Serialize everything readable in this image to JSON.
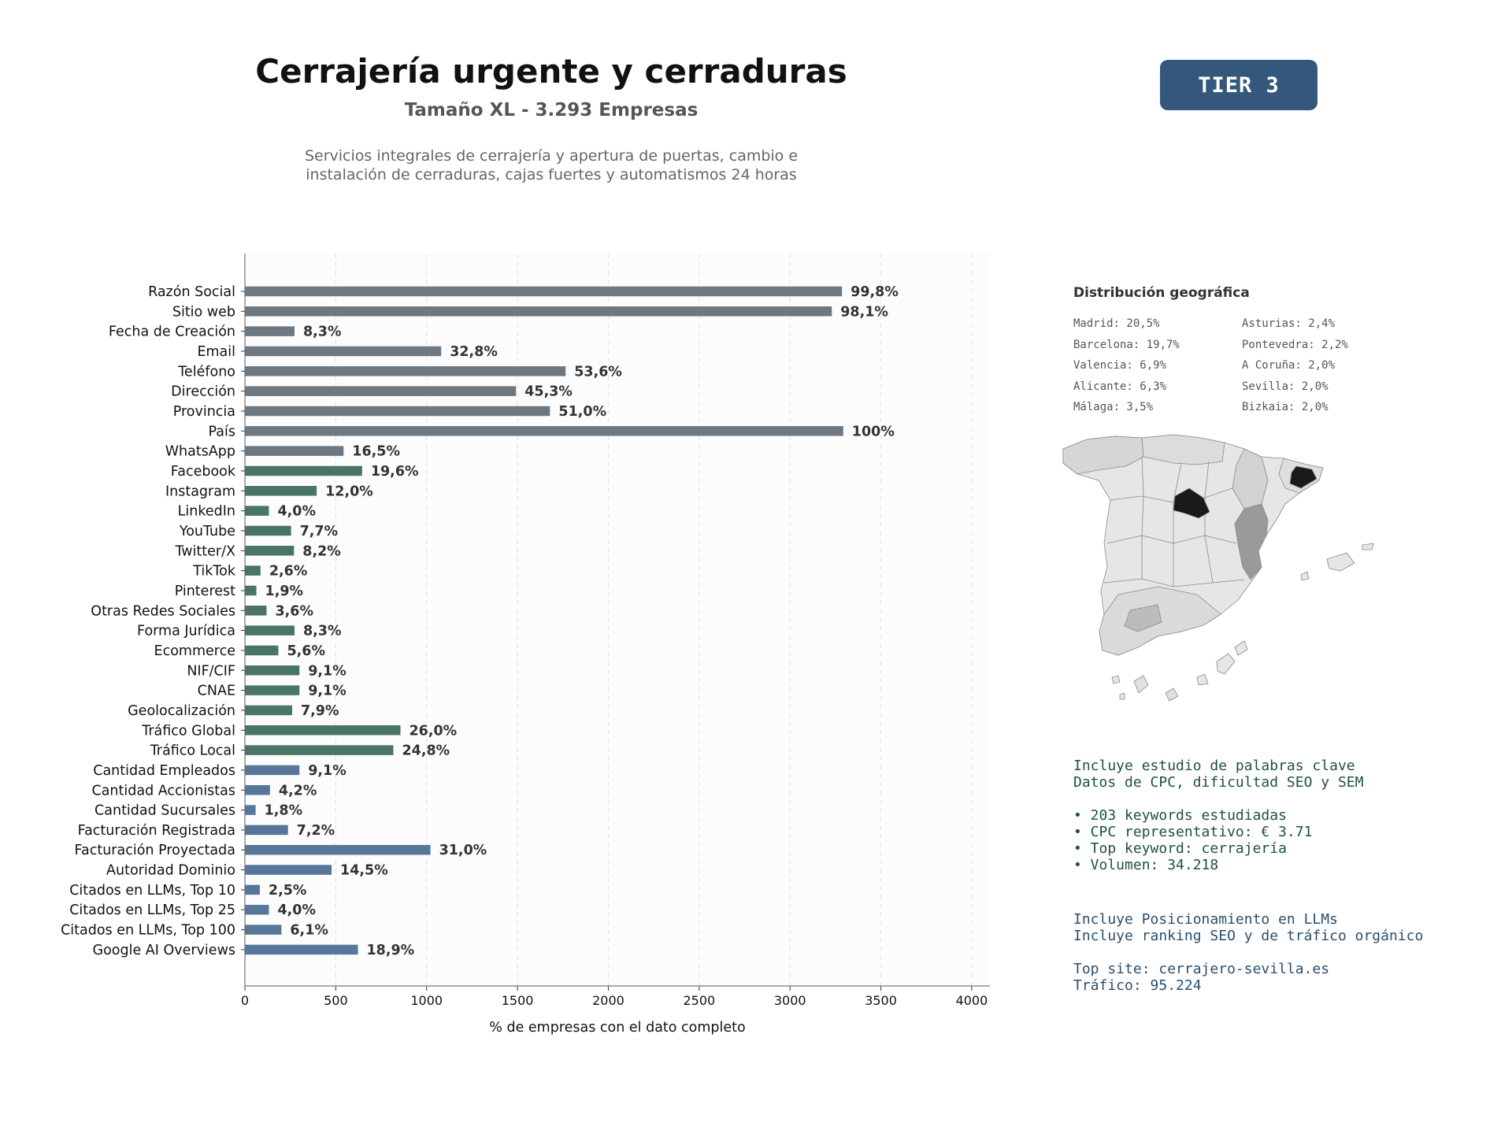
{
  "header": {
    "title": "Cerrajería urgente y cerraduras",
    "subtitle": "Tamaño XL - 3.293 Empresas",
    "description_line1": "Servicios integrales de cerrajería y apertura de puertas, cambio e",
    "description_line2": "instalación de cerraduras, cajas fuertes y automatismos 24 horas",
    "tier_label": "TIER 3"
  },
  "colors": {
    "gray": "#6e7880",
    "green": "#497565",
    "blue": "#56769a",
    "tier": "#34587c"
  },
  "chart_data": {
    "type": "bar",
    "orientation": "horizontal",
    "xlabel": "% de empresas con el dato completo",
    "xlim": [
      0,
      4100
    ],
    "xticks": [
      0,
      500,
      1000,
      1500,
      2000,
      2500,
      3000,
      3500,
      4000
    ],
    "grid": "x-dashed",
    "categories": [
      "Razón Social",
      "Sitio web",
      "Fecha de Creación",
      "Email",
      "Teléfono",
      "Dirección",
      "Provincia",
      "País",
      "WhatsApp",
      "Facebook",
      "Instagram",
      "LinkedIn",
      "YouTube",
      "Twitter/X",
      "TikTok",
      "Pinterest",
      "Otras Redes Sociales",
      "Forma Jurídica",
      "Ecommerce",
      "NIF/CIF",
      "CNAE",
      "Geolocalización",
      "Tráfico Global",
      "Tráfico Local",
      "Cantidad Empleados",
      "Cantidad Accionistas",
      "Cantidad Sucursales",
      "Facturación Registrada",
      "Facturación Proyectada",
      "Autoridad Dominio",
      "Citados en LLMs, Top 10",
      "Citados en LLMs, Top 25",
      "Citados en LLMs, Top 100",
      "Google AI Overviews"
    ],
    "values": [
      3286,
      3230,
      273,
      1080,
      1765,
      1492,
      1679,
      3293,
      543,
      645,
      395,
      132,
      254,
      270,
      86,
      63,
      119,
      273,
      184,
      300,
      300,
      260,
      856,
      817,
      300,
      138,
      59,
      237,
      1021,
      477,
      82,
      132,
      201,
      622
    ],
    "labels": [
      "99,8%",
      "98,1%",
      "8,3%",
      "32,8%",
      "53,6%",
      "45,3%",
      "51,0%",
      "100%",
      "16,5%",
      "19,6%",
      "12,0%",
      "4,0%",
      "7,7%",
      "8,2%",
      "2,6%",
      "1,9%",
      "3,6%",
      "8,3%",
      "5,6%",
      "9,1%",
      "9,1%",
      "7,9%",
      "26,0%",
      "24,8%",
      "9,1%",
      "4,2%",
      "1,8%",
      "7,2%",
      "31,0%",
      "14,5%",
      "2,5%",
      "4,0%",
      "6,1%",
      "18,9%"
    ],
    "groups": [
      "gray",
      "gray",
      "gray",
      "gray",
      "gray",
      "gray",
      "gray",
      "gray",
      "gray",
      "green",
      "green",
      "green",
      "green",
      "green",
      "green",
      "green",
      "green",
      "green",
      "green",
      "green",
      "green",
      "green",
      "green",
      "green",
      "blue",
      "blue",
      "blue",
      "blue",
      "blue",
      "blue",
      "blue",
      "blue",
      "blue",
      "blue"
    ]
  },
  "geo": {
    "title": "Distribución geográfica",
    "col1": [
      "Madrid: 20,5%",
      "Barcelona: 19,7%",
      "Valencia: 6,9%",
      "Alicante: 6,3%",
      "Málaga: 3,5%"
    ],
    "col2": [
      "Asturias: 2,4%",
      "Pontevedra: 2,2%",
      "A Coruña: 2,0%",
      "Sevilla: 2,0%",
      "Bizkaia: 2,0%"
    ]
  },
  "seo": {
    "line1": "Incluye estudio de palabras clave",
    "line2": "Datos de CPC, dificultad SEO y SEM",
    "bullet1": "• 203 keywords estudiadas",
    "bullet2": "• CPC representativo: € 3.71",
    "bullet3": "• Top keyword: cerrajería",
    "bullet4": "• Volumen: 34.218"
  },
  "llm": {
    "line1": "Incluye Posicionamiento en LLMs",
    "line2": "Incluye ranking SEO y de tráfico orgánico",
    "top_site": "Top site: cerrajero-sevilla.es",
    "traffic": "Tráfico: 95.224"
  }
}
